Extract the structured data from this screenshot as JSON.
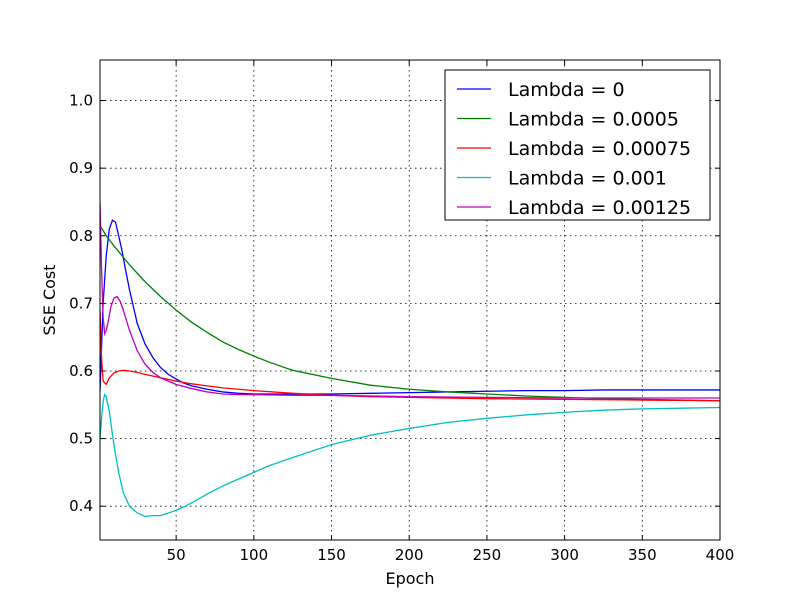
{
  "chart_data": {
    "type": "line",
    "title": "",
    "xlabel": "Epoch",
    "ylabel": "SSE Cost",
    "xlim": [
      1,
      400
    ],
    "ylim": [
      0.35,
      1.06
    ],
    "x_ticks": [
      50,
      100,
      150,
      200,
      250,
      300,
      350,
      400
    ],
    "y_ticks": [
      0.4,
      0.5,
      0.6,
      0.7,
      0.8,
      0.9,
      1.0
    ],
    "x_tick_labels": [
      "50",
      "100",
      "150",
      "200",
      "250",
      "300",
      "350",
      "400"
    ],
    "y_tick_labels": [
      "0.4",
      "0.5",
      "0.6",
      "0.7",
      "0.8",
      "0.9",
      "1.0"
    ],
    "grid": true,
    "legend_position": "top-right",
    "series": [
      {
        "name": "Lambda = 0",
        "color": "#0000ff",
        "x": [
          1,
          3,
          5,
          7,
          9,
          11,
          13,
          15,
          17,
          20,
          25,
          30,
          35,
          40,
          45,
          50,
          55,
          60,
          70,
          80,
          90,
          100,
          125,
          150,
          175,
          200,
          225,
          250,
          275,
          300,
          325,
          350,
          375,
          400
        ],
        "y": [
          0.57,
          0.7,
          0.77,
          0.81,
          0.823,
          0.82,
          0.8,
          0.78,
          0.755,
          0.72,
          0.67,
          0.64,
          0.62,
          0.605,
          0.595,
          0.588,
          0.582,
          0.578,
          0.573,
          0.569,
          0.567,
          0.566,
          0.566,
          0.566,
          0.567,
          0.568,
          0.569,
          0.57,
          0.571,
          0.571,
          0.572,
          0.572,
          0.572,
          0.572
        ]
      },
      {
        "name": "Lambda = 0.0005",
        "color": "#008000",
        "x": [
          1,
          5,
          10,
          20,
          30,
          40,
          50,
          60,
          70,
          80,
          90,
          100,
          110,
          125,
          150,
          175,
          200,
          225,
          250,
          275,
          300,
          325,
          350,
          375,
          400
        ],
        "y": [
          0.815,
          0.8,
          0.785,
          0.757,
          0.732,
          0.71,
          0.69,
          0.672,
          0.657,
          0.643,
          0.632,
          0.622,
          0.613,
          0.601,
          0.589,
          0.579,
          0.573,
          0.569,
          0.566,
          0.563,
          0.561,
          0.559,
          0.558,
          0.557,
          0.556
        ]
      },
      {
        "name": "Lambda = 0.00075",
        "color": "#ff0000",
        "x": [
          1,
          2,
          3,
          5,
          7,
          10,
          13,
          16,
          20,
          25,
          30,
          40,
          50,
          60,
          70,
          80,
          100,
          125,
          150,
          175,
          200,
          250,
          300,
          350,
          400
        ],
        "y": [
          0.69,
          0.62,
          0.585,
          0.58,
          0.59,
          0.597,
          0.6,
          0.601,
          0.6,
          0.598,
          0.595,
          0.59,
          0.585,
          0.581,
          0.578,
          0.575,
          0.571,
          0.567,
          0.564,
          0.562,
          0.561,
          0.559,
          0.558,
          0.557,
          0.556
        ]
      },
      {
        "name": "Lambda = 0.001",
        "color": "#00bfbf",
        "x": [
          1,
          2,
          3,
          4,
          5,
          7,
          10,
          13,
          16,
          20,
          25,
          30,
          35,
          40,
          45,
          50,
          55,
          60,
          70,
          80,
          90,
          100,
          110,
          125,
          150,
          175,
          200,
          225,
          250,
          275,
          300,
          325,
          350,
          375,
          400
        ],
        "y": [
          0.5,
          0.53,
          0.555,
          0.565,
          0.562,
          0.54,
          0.49,
          0.45,
          0.42,
          0.4,
          0.39,
          0.385,
          0.386,
          0.386,
          0.39,
          0.394,
          0.399,
          0.405,
          0.418,
          0.43,
          0.44,
          0.45,
          0.46,
          0.472,
          0.491,
          0.505,
          0.515,
          0.524,
          0.53,
          0.535,
          0.539,
          0.542,
          0.544,
          0.545,
          0.546
        ]
      },
      {
        "name": "Lambda = 0.00125",
        "color": "#bf00bf",
        "x": [
          1,
          2,
          3,
          4,
          5,
          6,
          8,
          10,
          12,
          14,
          16,
          18,
          20,
          25,
          30,
          35,
          40,
          45,
          50,
          60,
          70,
          80,
          90,
          100,
          125,
          150,
          175,
          200,
          250,
          300,
          350,
          400
        ],
        "y": [
          0.85,
          0.75,
          0.68,
          0.655,
          0.66,
          0.67,
          0.695,
          0.708,
          0.71,
          0.703,
          0.69,
          0.675,
          0.66,
          0.63,
          0.61,
          0.598,
          0.59,
          0.585,
          0.58,
          0.574,
          0.569,
          0.566,
          0.565,
          0.565,
          0.564,
          0.564,
          0.563,
          0.562,
          0.561,
          0.56,
          0.56,
          0.56
        ]
      }
    ]
  }
}
